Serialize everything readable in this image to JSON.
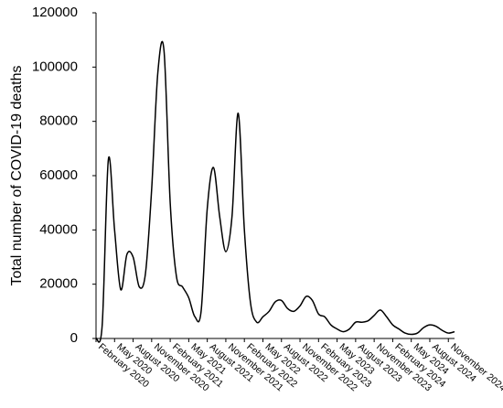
{
  "chart_data": {
    "type": "line",
    "y_label": "Total number of COVID-19 deaths",
    "categories": [
      "February 2020",
      null,
      null,
      "May 2020",
      null,
      null,
      "August 2020",
      null,
      null,
      "November 2020",
      null,
      null,
      "February 2021",
      null,
      null,
      "May 2021",
      null,
      null,
      "August 2021",
      null,
      null,
      "November 2021",
      null,
      null,
      "February 2022",
      null,
      null,
      "May 2022",
      null,
      null,
      "August 2022",
      null,
      null,
      "November 2022",
      null,
      null,
      "February 2023",
      null,
      null,
      "May 2023",
      null,
      null,
      "August 2023",
      null,
      null,
      "November 2023",
      null,
      null,
      "February 2024",
      null,
      null,
      "May 2024",
      null,
      null,
      "August 2024",
      null,
      null,
      "November 2024",
      null
    ],
    "series": [
      {
        "name": "Deaths",
        "color": "#000000",
        "values": [
          0,
          5000,
          66000,
          40000,
          18000,
          31000,
          30000,
          19000,
          24000,
          55000,
          98000,
          106000,
          50000,
          23000,
          19000,
          15000,
          8000,
          10000,
          48000,
          63000,
          45000,
          32000,
          45000,
          83000,
          40000,
          13000,
          6000,
          8000,
          10000,
          13500,
          14000,
          11000,
          10000,
          12000,
          15500,
          14000,
          9000,
          8000,
          5000,
          3500,
          2500,
          3500,
          6000,
          6000,
          6500,
          8500,
          10500,
          8000,
          5000,
          3500,
          2000,
          1500,
          2000,
          4000,
          5000,
          4500,
          3000,
          2000,
          2500
        ]
      }
    ],
    "ylim": [
      0,
      120000
    ],
    "yticks": [
      0,
      20000,
      40000,
      60000,
      80000,
      100000,
      120000
    ],
    "grid": false
  }
}
